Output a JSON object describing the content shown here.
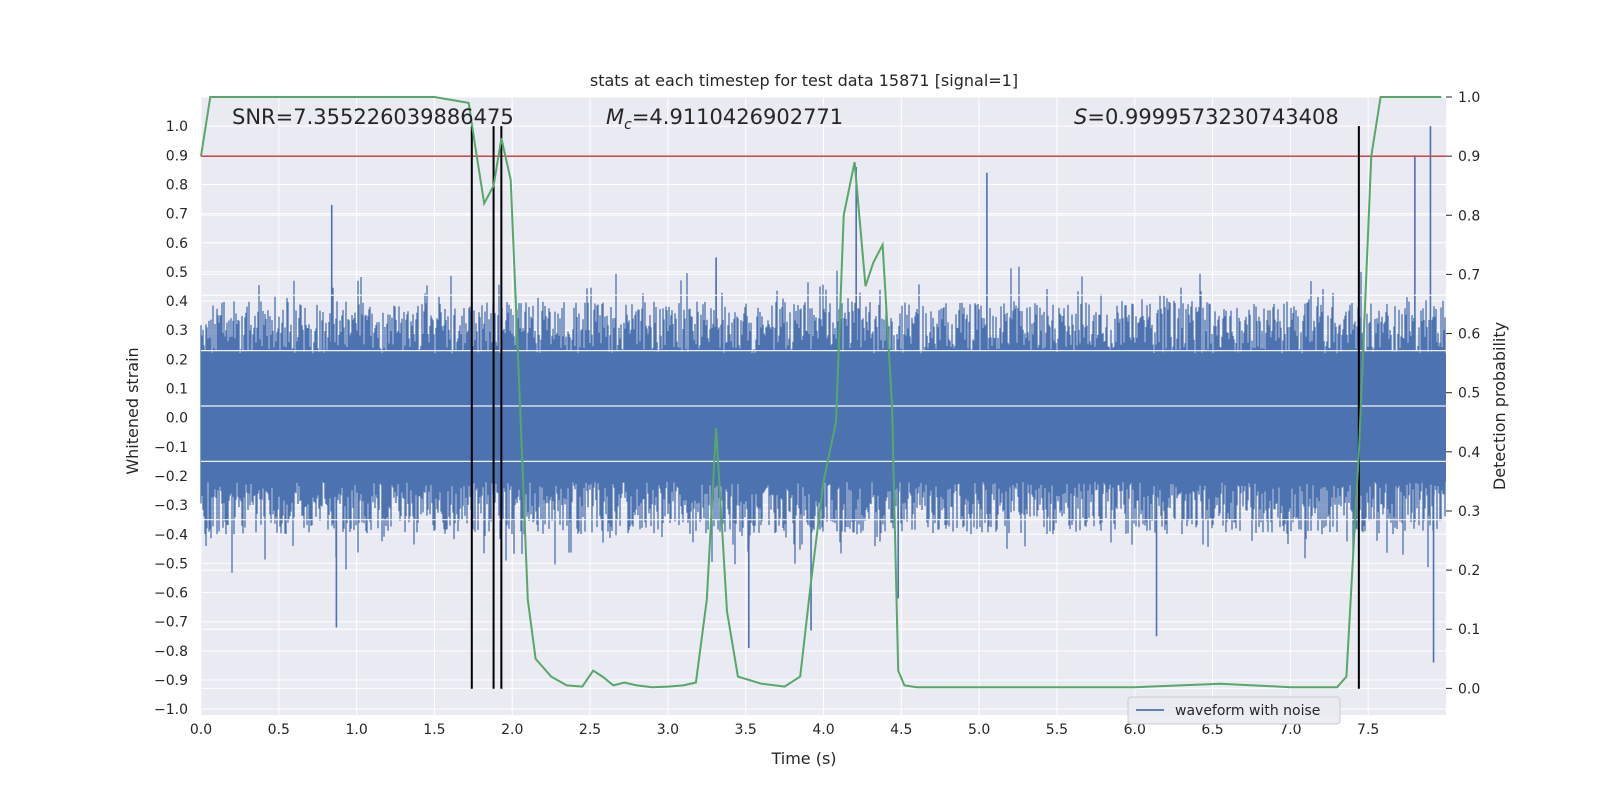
{
  "colors": {
    "background": "#ffffff",
    "axes_bg": "#eaeaf2",
    "grid": "#ffffff",
    "waveform": "#4c72b0",
    "probability": "#55a868",
    "threshold": "#c44e52",
    "markers": "#000000"
  },
  "chart_data": {
    "type": "line",
    "title": "stats at each timestep for test data 15871 [signal=1]",
    "xlabel": "Time (s)",
    "ylabel_left": "Whitened strain",
    "ylabel_right": "Detection probability",
    "xlim": [
      0.0,
      8.0
    ],
    "ylim_left": [
      -1.02,
      1.1
    ],
    "ylim_right": [
      -0.045,
      1.0
    ],
    "x_ticks": [
      "0.0",
      "0.5",
      "1.0",
      "1.5",
      "2.0",
      "2.5",
      "3.0",
      "3.5",
      "4.0",
      "4.5",
      "5.0",
      "5.5",
      "6.0",
      "6.5",
      "7.0",
      "7.5"
    ],
    "y_left_ticks": [
      "−1.0",
      "−0.9",
      "−0.8",
      "−0.7",
      "−0.6",
      "−0.5",
      "−0.4",
      "−0.3",
      "−0.2",
      "−0.1",
      "0.0",
      "0.1",
      "0.2",
      "0.3",
      "0.4",
      "0.5",
      "0.6",
      "0.7",
      "0.8",
      "0.9",
      "1.0"
    ],
    "y_right_ticks": [
      "0.0",
      "0.1",
      "0.2",
      "0.3",
      "0.4",
      "0.5",
      "0.6",
      "0.7",
      "0.8",
      "0.9",
      "1.0"
    ],
    "grid": true,
    "legend": {
      "position": "lower-right",
      "entries": [
        "waveform with noise"
      ]
    },
    "annotations": {
      "snr": "SNR=7.355226039886475",
      "mc_sym": "M",
      "mc_sub": "c",
      "mc_val": "=4.9110426902771",
      "s_sym": "S",
      "s_val": "=0.9999573230743408"
    },
    "threshold_probability": 0.9,
    "vertical_markers": [
      1.74,
      1.88,
      1.93,
      7.44
    ],
    "marker_y_range": [
      -0.93,
      1.0
    ],
    "waveform_envelope": {
      "typical_amplitude": 0.4,
      "peak_amplitude": 1.0,
      "min_amplitude": -0.84
    },
    "waveform_spikes": [
      {
        "x": 0.84,
        "y": 0.73
      },
      {
        "x": 0.87,
        "y": -0.72
      },
      {
        "x": 1.88,
        "y": 0.62
      },
      {
        "x": 3.31,
        "y": 0.55
      },
      {
        "x": 3.52,
        "y": -0.79
      },
      {
        "x": 4.21,
        "y": 0.86
      },
      {
        "x": 3.92,
        "y": -0.73
      },
      {
        "x": 4.48,
        "y": -0.62
      },
      {
        "x": 5.05,
        "y": 0.84
      },
      {
        "x": 6.14,
        "y": -0.75
      },
      {
        "x": 7.8,
        "y": 0.9
      },
      {
        "x": 7.9,
        "y": 1.0
      },
      {
        "x": 7.92,
        "y": -0.84
      }
    ],
    "series": [
      {
        "name": "detection probability",
        "axis": "right",
        "x": [
          0.0,
          0.06,
          0.2,
          0.5,
          1.0,
          1.5,
          1.72,
          1.76,
          1.82,
          1.88,
          1.93,
          1.99,
          2.05,
          2.1,
          2.15,
          2.25,
          2.35,
          2.45,
          2.52,
          2.58,
          2.65,
          2.72,
          2.8,
          2.9,
          3.0,
          3.1,
          3.18,
          3.25,
          3.31,
          3.38,
          3.45,
          3.6,
          3.75,
          3.85,
          3.92,
          4.0,
          4.08,
          4.13,
          4.2,
          4.27,
          4.32,
          4.38,
          4.44,
          4.48,
          4.52,
          4.6,
          5.0,
          6.0,
          6.55,
          7.0,
          7.3,
          7.36,
          7.44,
          7.52,
          7.58,
          7.7,
          7.97
        ],
        "y": [
          0.9,
          1.0,
          1.0,
          1.0,
          1.0,
          1.0,
          0.99,
          0.92,
          0.82,
          0.85,
          0.93,
          0.86,
          0.48,
          0.15,
          0.05,
          0.02,
          0.005,
          0.003,
          0.03,
          0.02,
          0.005,
          0.01,
          0.005,
          0.002,
          0.003,
          0.005,
          0.01,
          0.15,
          0.44,
          0.13,
          0.02,
          0.008,
          0.003,
          0.02,
          0.18,
          0.35,
          0.45,
          0.8,
          0.89,
          0.68,
          0.72,
          0.75,
          0.48,
          0.03,
          0.005,
          0.002,
          0.002,
          0.002,
          0.008,
          0.002,
          0.002,
          0.02,
          0.4,
          0.9,
          1.0,
          1.0,
          1.0
        ]
      }
    ]
  }
}
